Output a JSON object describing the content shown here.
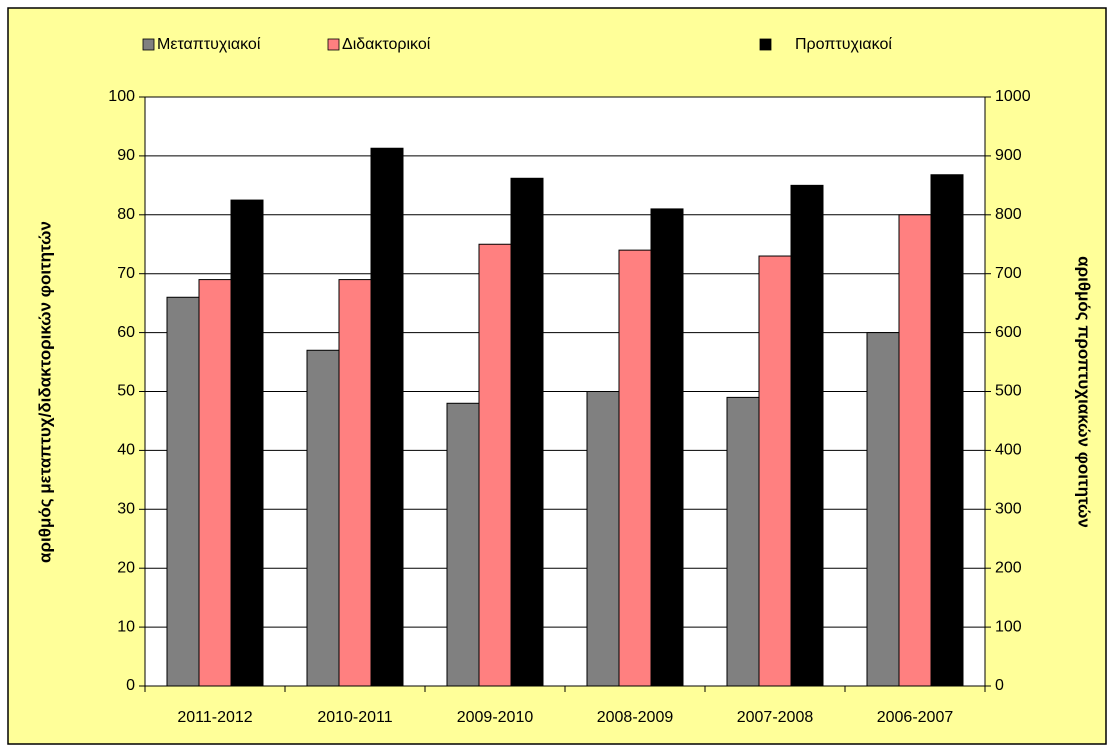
{
  "chart_data": {
    "type": "bar",
    "categories": [
      "2011-2012",
      "2010-2011",
      "2009-2010",
      "2008-2009",
      "2007-2008",
      "2006-2007"
    ],
    "series": [
      {
        "name": "Μεταπτυχιακοί",
        "color": "#808080",
        "values": [
          66,
          57,
          48,
          50,
          49,
          60
        ]
      },
      {
        "name": "Διδακτορικοί",
        "color": "#ff8080",
        "values": [
          69,
          69,
          75,
          74,
          73,
          80
        ]
      },
      {
        "name": "Προπτυχιακοί",
        "color": "#000000",
        "axis": "y2",
        "values": [
          825,
          913,
          862,
          810,
          850,
          868
        ]
      }
    ],
    "ylabel": "αριθμός μεταπτυχ/διδακτορικών φοιτητών",
    "y2label": "αριθμός προπτυχιακών φοιτητών",
    "ylim": [
      0,
      100
    ],
    "yticks": [
      0,
      10,
      20,
      30,
      40,
      50,
      60,
      70,
      80,
      90,
      100
    ],
    "y2lim": [
      0,
      1000
    ],
    "y2ticks": [
      0,
      100,
      200,
      300,
      400,
      500,
      600,
      700,
      800,
      900,
      1000
    ],
    "grid": true,
    "legend": "top"
  }
}
